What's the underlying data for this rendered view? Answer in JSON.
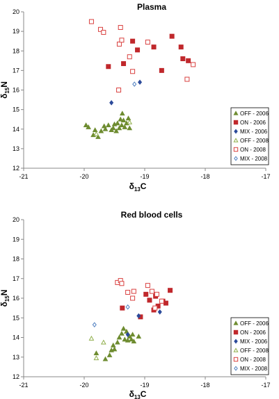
{
  "chart_data": [
    {
      "type": "scatter",
      "title": "Plasma",
      "xlabel": "δ13C",
      "ylabel": "δ15N",
      "xlim": [
        -21,
        -17
      ],
      "ylim": [
        12,
        20
      ],
      "xticks": [
        -21,
        -20,
        -19,
        -18,
        -17
      ],
      "yticks": [
        12,
        13,
        14,
        15,
        16,
        17,
        18,
        19,
        20
      ],
      "legend_position": "bottom-right",
      "series": [
        {
          "name": "OFF - 2006",
          "marker": "triangle",
          "fill": true,
          "color": "#6e8c30",
          "points": [
            [
              -19.97,
              14.2
            ],
            [
              -19.93,
              14.1
            ],
            [
              -19.85,
              13.7
            ],
            [
              -19.82,
              13.95
            ],
            [
              -19.77,
              13.6
            ],
            [
              -19.72,
              13.9
            ],
            [
              -19.67,
              14.15
            ],
            [
              -19.65,
              14.0
            ],
            [
              -19.6,
              14.2
            ],
            [
              -19.55,
              13.95
            ],
            [
              -19.52,
              14.05
            ],
            [
              -19.5,
              14.25
            ],
            [
              -19.47,
              13.9
            ],
            [
              -19.45,
              14.3
            ],
            [
              -19.42,
              14.05
            ],
            [
              -19.4,
              14.5
            ],
            [
              -19.38,
              14.2
            ],
            [
              -19.37,
              14.8
            ],
            [
              -19.35,
              14.45
            ],
            [
              -19.33,
              14.1
            ],
            [
              -19.3,
              14.3
            ],
            [
              -19.27,
              14.55
            ],
            [
              -19.25,
              14.05
            ]
          ]
        },
        {
          "name": "ON - 2006",
          "marker": "square",
          "fill": true,
          "color": "#c0282c",
          "points": [
            [
              -19.6,
              17.2
            ],
            [
              -19.35,
              17.35
            ],
            [
              -19.2,
              18.5
            ],
            [
              -19.12,
              18.05
            ],
            [
              -18.85,
              18.2
            ],
            [
              -18.72,
              17.0
            ],
            [
              -18.55,
              18.75
            ],
            [
              -18.4,
              18.2
            ],
            [
              -18.37,
              17.6
            ],
            [
              -18.28,
              17.5
            ]
          ]
        },
        {
          "name": "MIX - 2006",
          "marker": "diamond",
          "fill": true,
          "color": "#2c4a9a",
          "points": [
            [
              -19.55,
              15.35
            ],
            [
              -19.08,
              16.4
            ]
          ]
        },
        {
          "name": "OFF - 2008",
          "marker": "triangle",
          "fill": false,
          "color": "#8fae4a",
          "points": [
            [
              -19.8,
              13.75
            ],
            [
              -19.25,
              14.35
            ]
          ]
        },
        {
          "name": "ON - 2008",
          "marker": "square",
          "fill": false,
          "color": "#d9403f",
          "points": [
            [
              -19.88,
              19.5
            ],
            [
              -19.73,
              19.1
            ],
            [
              -19.68,
              18.95
            ],
            [
              -19.42,
              18.35
            ],
            [
              -19.4,
              19.2
            ],
            [
              -19.38,
              18.55
            ],
            [
              -19.25,
              17.7
            ],
            [
              -19.2,
              16.95
            ],
            [
              -19.43,
              16.0
            ],
            [
              -18.95,
              18.45
            ],
            [
              -18.3,
              16.55
            ],
            [
              -18.2,
              17.3
            ]
          ]
        },
        {
          "name": "MIX - 2008",
          "marker": "diamond",
          "fill": false,
          "color": "#4f7fc0",
          "points": [
            [
              -19.17,
              16.3
            ]
          ]
        }
      ]
    },
    {
      "type": "scatter",
      "title": "Red blood cells",
      "xlabel": "δ13C",
      "ylabel": "δ15N",
      "xlim": [
        -21,
        -17
      ],
      "ylim": [
        12,
        20
      ],
      "xticks": [
        -21,
        -20,
        -19,
        -18,
        -17
      ],
      "yticks": [
        12,
        13,
        14,
        15,
        16,
        17,
        18,
        19,
        20
      ],
      "legend_position": "bottom-right",
      "series": [
        {
          "name": "OFF - 2006",
          "marker": "triangle",
          "fill": true,
          "color": "#6e8c30",
          "points": [
            [
              -19.8,
              13.2
            ],
            [
              -19.65,
              12.9
            ],
            [
              -19.58,
              13.1
            ],
            [
              -19.55,
              13.35
            ],
            [
              -19.52,
              13.6
            ],
            [
              -19.5,
              13.4
            ],
            [
              -19.45,
              13.75
            ],
            [
              -19.42,
              14.0
            ],
            [
              -19.38,
              14.2
            ],
            [
              -19.35,
              14.45
            ],
            [
              -19.33,
              13.9
            ],
            [
              -19.3,
              14.3
            ],
            [
              -19.28,
              13.85
            ],
            [
              -19.25,
              14.05
            ],
            [
              -19.22,
              13.9
            ],
            [
              -19.2,
              14.15
            ],
            [
              -19.18,
              13.8
            ],
            [
              -19.1,
              14.05
            ]
          ]
        },
        {
          "name": "ON - 2006",
          "marker": "square",
          "fill": true,
          "color": "#c0282c",
          "points": [
            [
              -19.37,
              15.5
            ],
            [
              -19.07,
              15.05
            ],
            [
              -18.98,
              16.2
            ],
            [
              -18.92,
              15.9
            ],
            [
              -18.85,
              15.4
            ],
            [
              -18.82,
              16.1
            ],
            [
              -18.78,
              15.6
            ],
            [
              -18.7,
              15.85
            ],
            [
              -18.65,
              15.75
            ],
            [
              -18.58,
              16.4
            ]
          ]
        },
        {
          "name": "MIX - 2006",
          "marker": "diamond",
          "fill": true,
          "color": "#2c4a9a",
          "points": [
            [
              -19.28,
              14.15
            ],
            [
              -19.1,
              15.1
            ],
            [
              -18.75,
              15.3
            ]
          ]
        },
        {
          "name": "OFF - 2008",
          "marker": "triangle",
          "fill": false,
          "color": "#8fae4a",
          "points": [
            [
              -19.88,
              13.95
            ],
            [
              -19.8,
              12.95
            ],
            [
              -19.68,
              13.75
            ]
          ]
        },
        {
          "name": "ON - 2008",
          "marker": "square",
          "fill": false,
          "color": "#d9403f",
          "points": [
            [
              -19.45,
              16.8
            ],
            [
              -19.4,
              16.9
            ],
            [
              -19.38,
              16.75
            ],
            [
              -19.28,
              16.3
            ],
            [
              -19.2,
              16.0
            ],
            [
              -19.18,
              16.35
            ],
            [
              -18.95,
              16.65
            ],
            [
              -18.88,
              16.35
            ],
            [
              -18.83,
              15.5
            ],
            [
              -18.8,
              16.2
            ],
            [
              -18.72,
              15.85
            ]
          ]
        },
        {
          "name": "MIX - 2008",
          "marker": "diamond",
          "fill": false,
          "color": "#4f7fc0",
          "points": [
            [
              -19.83,
              14.65
            ],
            [
              -19.28,
              15.55
            ]
          ]
        }
      ]
    }
  ]
}
